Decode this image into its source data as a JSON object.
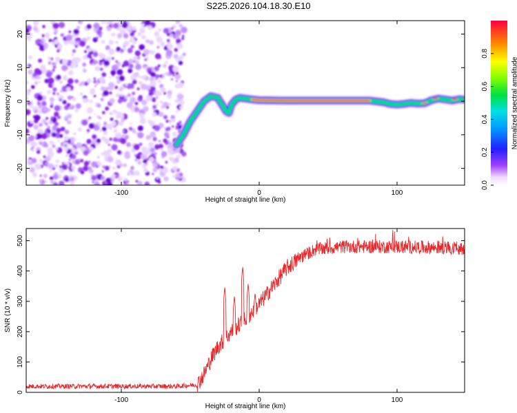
{
  "title": "S225.2026.104.18.30.E10",
  "colors": {
    "snr_line": "#e8292c",
    "axis": "#000000"
  },
  "chart_data": [
    {
      "type": "heatmap",
      "name": "spectrogram",
      "xlabel": "Height of straight line (km)",
      "ylabel": "Frequency (Hz)",
      "xlim": [
        -169,
        149
      ],
      "ylim": [
        -25,
        24
      ],
      "xticks": [
        -100,
        0,
        100
      ],
      "xtick_labels": [
        "-100",
        "0",
        "100"
      ],
      "yticks": [
        -20,
        -10,
        0,
        10,
        20
      ],
      "ytick_labels": [
        "-20",
        "-10",
        "0",
        "10",
        "20"
      ],
      "noise_region_x": [
        -169,
        -54
      ],
      "track": {
        "x": [
          -60,
          -55,
          -50,
          -45,
          -40,
          -35,
          -30,
          -27,
          -24,
          -22,
          -20,
          -17,
          -14,
          -10,
          -5,
          0,
          20,
          50,
          80,
          90,
          95,
          100,
          105,
          110,
          115,
          120,
          125,
          130,
          135,
          140,
          145,
          148
        ],
        "freq": [
          -13,
          -10,
          -6,
          -3,
          0,
          1.5,
          1,
          -1,
          -3,
          -3.5,
          -1,
          0.5,
          1,
          0.8,
          0.5,
          0.3,
          0.2,
          0.2,
          0.2,
          -0.3,
          -0.8,
          -1,
          -0.8,
          -0.5,
          -0.7,
          -0.6,
          0.3,
          0.8,
          0.5,
          0.2,
          0.6,
          0.5
        ]
      },
      "track_peak_x": [
        -5,
        80
      ],
      "colorbar": {
        "label": "Normalized spectral amplitude",
        "range": [
          0,
          1
        ],
        "ticks": [
          0.0,
          0.2,
          0.4,
          0.6,
          0.8
        ],
        "tick_labels": [
          "0.0",
          "0.2",
          "0.4",
          "0.6",
          "0.8"
        ]
      }
    },
    {
      "type": "line",
      "name": "snr",
      "xlabel": "Height of straight line (km)",
      "ylabel": "SNR (10 * v/v)",
      "xlim": [
        -169,
        149
      ],
      "ylim": [
        0,
        540
      ],
      "xticks": [
        -100,
        0,
        100
      ],
      "xtick_labels": [
        "-100",
        "0",
        "100"
      ],
      "yticks": [
        0,
        100,
        200,
        300,
        400,
        500
      ],
      "ytick_labels": [
        "0",
        "100",
        "200",
        "300",
        "400",
        "500"
      ],
      "trend": {
        "x": [
          -169,
          -60,
          -45,
          -40,
          -35,
          -30,
          -20,
          -10,
          0,
          10,
          20,
          30,
          40,
          60,
          100,
          149
        ],
        "y": [
          20,
          20,
          25,
          60,
          110,
          150,
          200,
          240,
          290,
          350,
          410,
          445,
          470,
          480,
          480,
          475
        ]
      },
      "spikes": [
        {
          "x": -25,
          "y": 350
        },
        {
          "x": -18,
          "y": 320
        },
        {
          "x": -12,
          "y": 415
        },
        {
          "x": -8,
          "y": 360
        },
        {
          "x": -3,
          "y": 330
        }
      ]
    }
  ]
}
